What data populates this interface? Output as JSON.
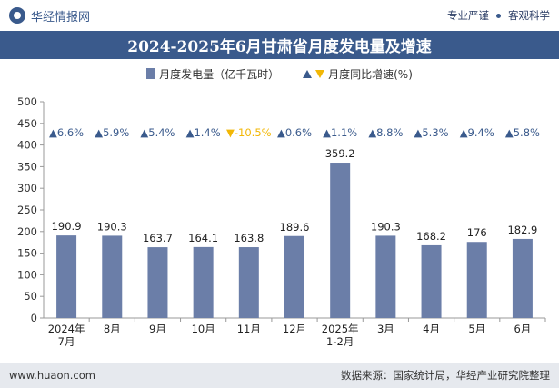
{
  "header": {
    "brand": "华经情报网",
    "tag1": "专业严谨",
    "tag2": "客观科学"
  },
  "chart_data": {
    "type": "bar",
    "title": "2024-2025年6月甘肃省月度发电量及增速",
    "categories": [
      "2024年\n7月",
      "8月",
      "9月",
      "10月",
      "11月",
      "12月",
      "2025年\n1-2月",
      "3月",
      "4月",
      "5月",
      "6月"
    ],
    "series": [
      {
        "name": "月度发电量（亿千瓦时）",
        "type": "bar",
        "values": [
          190.9,
          190.3,
          163.7,
          164.1,
          163.8,
          189.6,
          359.2,
          190.3,
          168.2,
          176,
          182.9
        ]
      },
      {
        "name": "月度同比增速(%)",
        "type": "growth",
        "values": [
          6.6,
          5.9,
          5.4,
          1.4,
          -10.5,
          0.6,
          1.1,
          8.8,
          5.3,
          9.4,
          5.8
        ]
      }
    ],
    "growth_labels": [
      "▲6.6%",
      "▲5.9%",
      "▲5.4%",
      "▲1.4%",
      "▼-10.5%",
      "▲0.6%",
      "▲1.1%",
      "▲8.8%",
      "▲5.3%",
      "▲9.4%",
      "▲5.8%"
    ],
    "value_labels": [
      "190.9",
      "190.3",
      "163.7",
      "164.1",
      "163.8",
      "189.6",
      "359.2",
      "190.3",
      "168.2",
      "176",
      "182.9"
    ],
    "yticks": [
      "0",
      "50",
      "100",
      "150",
      "200",
      "250",
      "300",
      "350",
      "400",
      "450",
      "500"
    ],
    "ylim": [
      0,
      500
    ],
    "legend_position": "top-center",
    "grid": false,
    "colors": {
      "bar": "#6b7ea8",
      "up": "#3a5a8c",
      "down": "#f2b705",
      "title_bg": "#3a5a8c"
    }
  },
  "legend": {
    "bar_label": "月度发电量（亿千瓦时）",
    "growth_label": "月度同比增速(%)"
  },
  "footer": {
    "website": "www.huaon.com",
    "source": "数据来源：国家统计局，华经产业研究院整理"
  }
}
